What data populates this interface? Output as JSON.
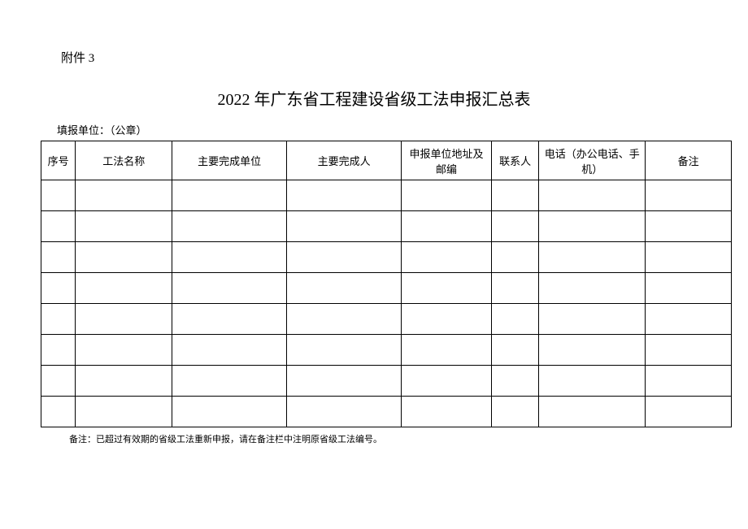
{
  "attachment_label": "附件 3",
  "title": "2022 年广东省工程建设省级工法申报汇总表",
  "reporting_unit_label": "填报单位：（公章）",
  "table": {
    "headers": {
      "seq": "序号",
      "method_name": "工法名称",
      "main_unit": "主要完成单位",
      "main_person": "主要完成人",
      "address": "申报单位地址及邮编",
      "contact": "联系人",
      "phone": "电话（办公电话、手机）",
      "remark": "备注"
    },
    "row_count": 8
  },
  "footnote": "备注：已超过有效期的省级工法重新申报，请在备注栏中注明原省级工法编号。",
  "styling": {
    "background_color": "#ffffff",
    "border_color": "#000000",
    "text_color": "#000000",
    "title_fontsize": 20,
    "header_fontsize": 13,
    "label_fontsize": 15,
    "footnote_fontsize": 11
  }
}
